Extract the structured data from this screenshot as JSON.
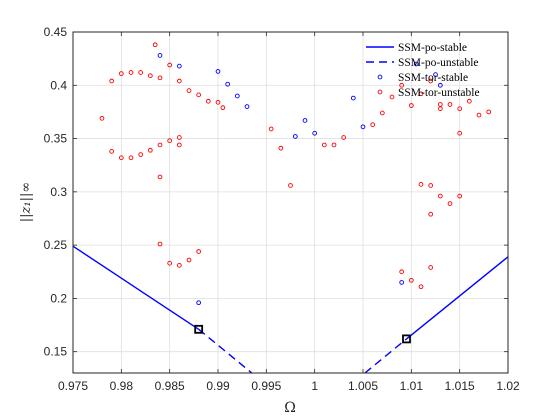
{
  "chart_data": {
    "type": "scatter",
    "xlabel": "Ω",
    "ylabel": "||z₁||∞",
    "xlim": [
      0.975,
      1.02
    ],
    "ylim": [
      0.13,
      0.45
    ],
    "xticks": [
      "0.975",
      "0.98",
      "0.985",
      "0.99",
      "0.995",
      "1",
      "1.005",
      "1.01",
      "1.015",
      "1.02"
    ],
    "yticks": [
      "0.15",
      "0.2",
      "0.25",
      "0.3",
      "0.35",
      "0.4",
      "0.45"
    ],
    "grid": true,
    "legend_position": "top-right",
    "colors": {
      "stable": "#0000ff",
      "unstable": "#ff0000",
      "axis": "#262626",
      "grid": "#dfdfdf",
      "marker": "#000000"
    },
    "series": [
      {
        "name": "SSM-po-stable",
        "style": "solid-line",
        "color": "#0000ff",
        "segments": [
          [
            [
              0.975,
              0.249
            ],
            [
              0.988,
              0.171
            ]
          ],
          [
            [
              1.0095,
              0.162
            ],
            [
              1.02,
              0.239
            ]
          ]
        ]
      },
      {
        "name": "SSM-po-unstable",
        "style": "dashed-line",
        "color": "#0000ff",
        "segments": [
          [
            [
              0.988,
              0.171
            ],
            [
              0.9935,
              0.13
            ]
          ],
          [
            [
              1.0052,
              0.13
            ],
            [
              1.0095,
              0.162
            ]
          ]
        ]
      },
      {
        "name": "SSM-tor-stable",
        "style": "circles",
        "color": "#0000ff",
        "points": [
          [
            0.984,
            0.428
          ],
          [
            0.986,
            0.418
          ],
          [
            0.988,
            0.196
          ],
          [
            0.99,
            0.413
          ],
          [
            0.991,
            0.401
          ],
          [
            0.992,
            0.39
          ],
          [
            0.993,
            0.38
          ],
          [
            0.998,
            0.352
          ],
          [
            0.999,
            0.367
          ],
          [
            1.0,
            0.355
          ],
          [
            1.004,
            0.388
          ],
          [
            1.005,
            0.361
          ],
          [
            1.009,
            0.215
          ],
          [
            1.0105,
            0.42
          ],
          [
            1.0125,
            0.41
          ],
          [
            1.013,
            0.4
          ]
        ]
      },
      {
        "name": "SSM-tor-unstable",
        "style": "circles",
        "color": "#ff0000",
        "points": [
          [
            0.978,
            0.369
          ],
          [
            0.979,
            0.404
          ],
          [
            0.98,
            0.411
          ],
          [
            0.981,
            0.412
          ],
          [
            0.982,
            0.412
          ],
          [
            0.983,
            0.409
          ],
          [
            0.9835,
            0.438
          ],
          [
            0.984,
            0.407
          ],
          [
            0.985,
            0.419
          ],
          [
            0.986,
            0.404
          ],
          [
            0.987,
            0.395
          ],
          [
            0.988,
            0.391
          ],
          [
            0.989,
            0.385
          ],
          [
            0.99,
            0.384
          ],
          [
            0.9905,
            0.379
          ],
          [
            0.9955,
            0.359
          ],
          [
            0.9965,
            0.341
          ],
          [
            0.9975,
            0.306
          ],
          [
            0.979,
            0.338
          ],
          [
            0.98,
            0.332
          ],
          [
            0.981,
            0.332
          ],
          [
            0.982,
            0.335
          ],
          [
            0.983,
            0.339
          ],
          [
            0.984,
            0.344
          ],
          [
            0.985,
            0.348
          ],
          [
            0.986,
            0.351
          ],
          [
            0.986,
            0.344
          ],
          [
            0.984,
            0.314
          ],
          [
            0.984,
            0.251
          ],
          [
            0.985,
            0.233
          ],
          [
            0.986,
            0.231
          ],
          [
            0.987,
            0.236
          ],
          [
            0.988,
            0.244
          ],
          [
            1.001,
            0.344
          ],
          [
            1.002,
            0.344
          ],
          [
            1.003,
            0.351
          ],
          [
            1.006,
            0.363
          ],
          [
            1.007,
            0.374
          ],
          [
            1.008,
            0.389
          ],
          [
            1.009,
            0.4
          ],
          [
            1.01,
            0.381
          ],
          [
            1.011,
            0.392
          ],
          [
            1.012,
            0.404
          ],
          [
            1.013,
            0.378
          ],
          [
            1.013,
            0.382
          ],
          [
            1.014,
            0.382
          ],
          [
            1.015,
            0.378
          ],
          [
            1.016,
            0.385
          ],
          [
            1.017,
            0.372
          ],
          [
            1.018,
            0.375
          ],
          [
            1.015,
            0.355
          ],
          [
            1.011,
            0.307
          ],
          [
            1.012,
            0.306
          ],
          [
            1.013,
            0.296
          ],
          [
            1.014,
            0.289
          ],
          [
            1.015,
            0.296
          ],
          [
            1.012,
            0.279
          ],
          [
            1.009,
            0.225
          ],
          [
            1.01,
            0.217
          ],
          [
            1.011,
            0.211
          ],
          [
            1.012,
            0.229
          ]
        ]
      }
    ],
    "markers": [
      [
        0.988,
        0.171
      ],
      [
        1.0095,
        0.162
      ]
    ]
  }
}
